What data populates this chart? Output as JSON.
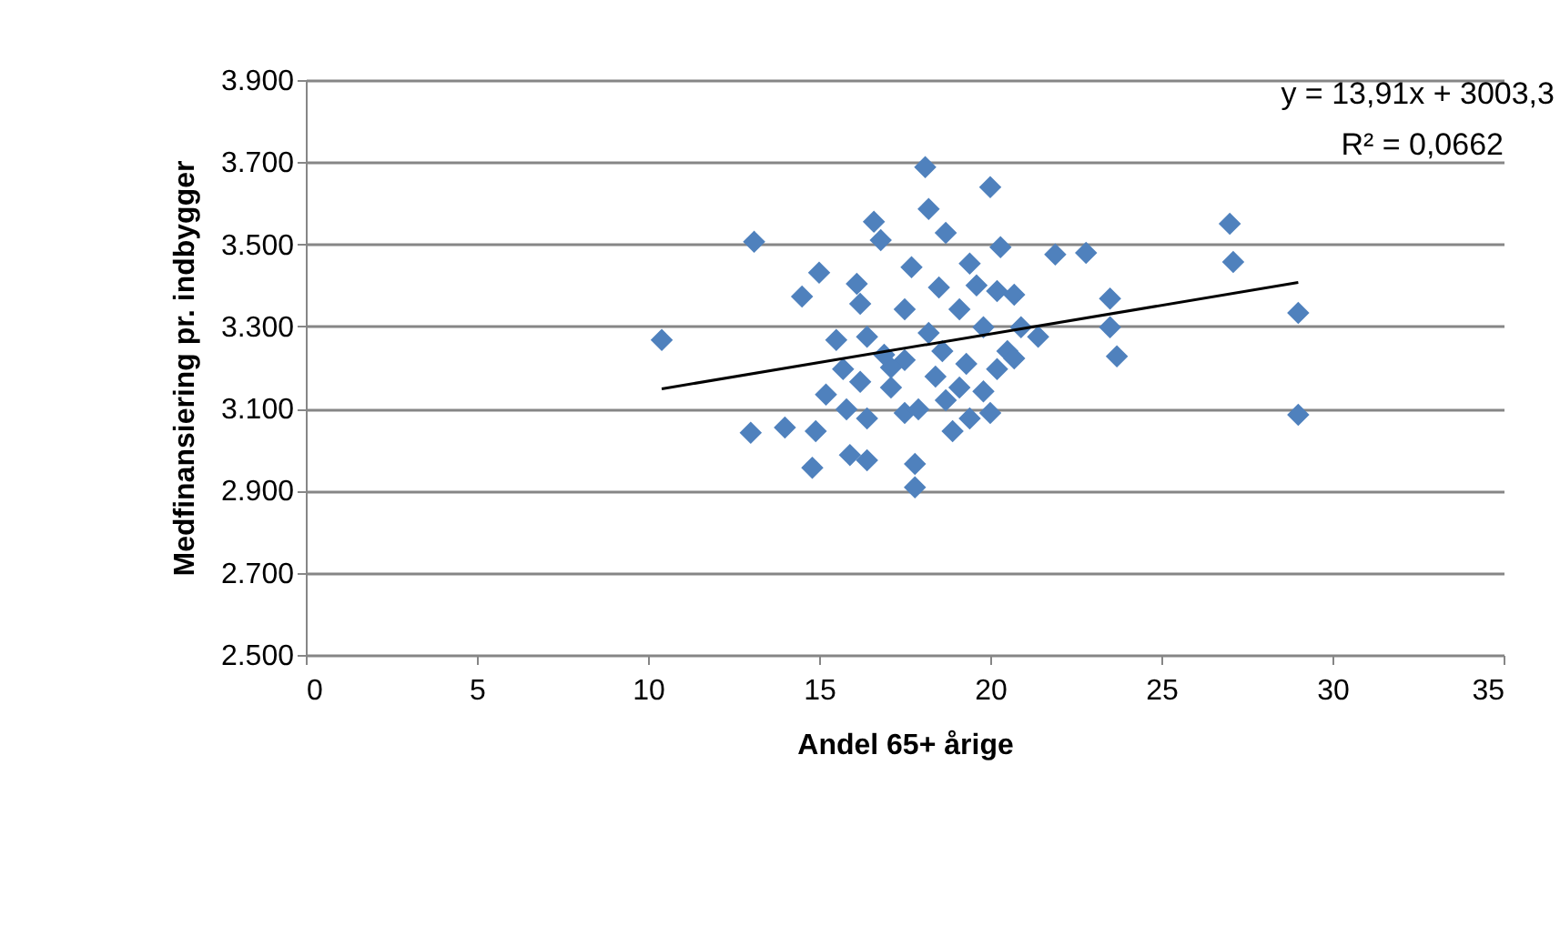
{
  "chart_data": {
    "type": "scatter",
    "xlabel": "Andel 65+ årige",
    "ylabel": "Medfinansiering pr. indbygger",
    "xlim": [
      0,
      35
    ],
    "xticks": [
      0,
      5,
      10,
      15,
      20,
      25,
      30,
      35
    ],
    "ylim": [
      2500,
      3900
    ],
    "yticks": [
      {
        "value": 2500,
        "label": "2.500"
      },
      {
        "value": 2700,
        "label": "2.700"
      },
      {
        "value": 2900,
        "label": "2.900"
      },
      {
        "value": 3100,
        "label": "3.100"
      },
      {
        "value": 3300,
        "label": "3.300"
      },
      {
        "value": 3500,
        "label": "3.500"
      },
      {
        "value": 3700,
        "label": "3.700"
      },
      {
        "value": 3900,
        "label": "3.900"
      }
    ],
    "grid": "y",
    "legend": false,
    "series": [
      {
        "type": "scatter",
        "marker": "diamond",
        "color": "#4f81bd",
        "x": [
          10.4,
          13.1,
          13.0,
          14.0,
          14.9,
          14.8,
          14.5,
          15.0,
          16.1,
          16.2,
          16.6,
          16.8,
          18.1,
          18.2,
          18.7,
          20.0,
          20.3,
          21.9,
          22.8,
          23.5,
          23.5,
          23.7,
          27.0,
          27.1,
          29.0,
          29.0,
          21.4,
          20.0,
          17.7,
          17.5,
          19.4,
          20.2,
          20.7,
          15.5,
          16.4,
          17.5,
          18.2,
          19.8,
          20.9,
          15.2,
          16.2,
          17.1,
          18.4,
          19.1,
          20.2,
          20.5,
          16.4,
          17.5,
          18.9,
          19.4,
          15.9,
          16.4,
          17.8,
          17.8,
          15.7,
          17.1,
          18.6,
          19.1,
          18.5,
          19.6,
          20.7,
          17.9,
          16.9,
          19.3,
          18.7,
          15.8,
          19.8
        ],
        "values": [
          3267,
          3506,
          3041,
          3054,
          3045,
          2956,
          3373,
          3431,
          3404,
          3355,
          3555,
          3510,
          3688,
          3586,
          3528,
          3639,
          3493,
          3475,
          3479,
          3368,
          3298,
          3227,
          3550,
          3457,
          3333,
          3085,
          3275,
          3089,
          3444,
          3342,
          3453,
          3386,
          3377,
          3267,
          3275,
          3218,
          3284,
          3298,
          3298,
          3134,
          3165,
          3151,
          3178,
          3151,
          3196,
          3240,
          3076,
          3089,
          3045,
          3076,
          2987,
          2974,
          2965,
          2908,
          3196,
          3200,
          3240,
          3342,
          3395,
          3400,
          3222,
          3098,
          3231,
          3209,
          3120,
          3098,
          3142
        ]
      },
      {
        "type": "line",
        "line_style": "solid",
        "color": "#000000",
        "x": [
          10.4,
          29.0
        ],
        "values": [
          3148,
          3407
        ]
      }
    ],
    "annotations": [
      "y = 13,91x + 3003,3",
      "R² = 0,0662"
    ]
  }
}
